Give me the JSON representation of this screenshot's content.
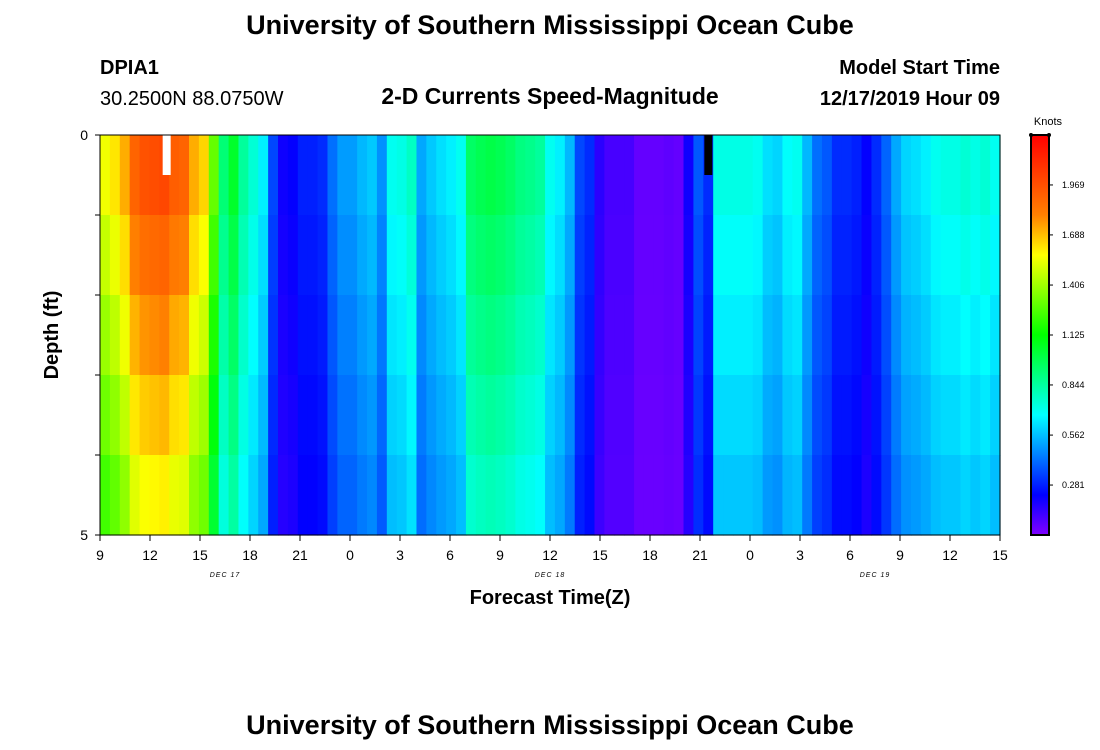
{
  "header": {
    "title": "University of Southern Mississippi Ocean Cube",
    "station_id": "DPIA1",
    "station_coords": "30.2500N 88.0750W",
    "plot_title": "2-D Currents Speed-Magnitude",
    "model_start_label": "Model Start Time",
    "model_start_value": "12/17/2019 Hour 09"
  },
  "footer": {
    "title": "University of Southern Mississippi Ocean Cube"
  },
  "chart_data": {
    "type": "heatmap",
    "title": "2-D Currents Speed-Magnitude",
    "xlabel": "Forecast Time(Z)",
    "ylabel": "Depth (ft)",
    "x_ticks": [
      "9",
      "12",
      "15",
      "18",
      "21",
      "0",
      "3",
      "6",
      "9",
      "12",
      "15",
      "18",
      "21",
      "0",
      "3",
      "6",
      "9",
      "12",
      "15"
    ],
    "day_labels": [
      {
        "label": "DEC 17",
        "hour_offset": 7.5
      },
      {
        "label": "DEC 18",
        "hour_offset": 27
      },
      {
        "label": "DEC 19",
        "hour_offset": 46.5
      }
    ],
    "y_ticks": [
      "0",
      "5"
    ],
    "ylim": [
      0,
      5
    ],
    "xlim_hours_from_start": [
      0,
      54
    ],
    "time_step_hours": 1,
    "depth_levels": 5,
    "colorbar": {
      "units": "Knots",
      "range": [
        0,
        2.25
      ],
      "tick_values": [
        "1.969",
        "1.688",
        "1.406",
        "1.125",
        "0.844",
        "0.562",
        "0.281"
      ],
      "colors": [
        "#8000ff",
        "#0000ff",
        "#0080ff",
        "#00ffff",
        "#00ff80",
        "#00ff00",
        "#80ff00",
        "#ffff00",
        "#ff8000",
        "#ff4000",
        "#ff0000"
      ]
    },
    "surface_speed_knots": [
      1.55,
      1.62,
      1.72,
      1.9,
      1.96,
      1.98,
      2.0,
      1.92,
      1.9,
      1.72,
      1.65,
      1.3,
      0.92,
      1.05,
      0.85,
      0.75,
      0.65,
      0.35,
      0.2,
      0.22,
      0.28,
      0.28,
      0.3,
      0.42,
      0.5,
      0.5,
      0.55,
      0.58,
      0.48,
      0.7,
      0.72,
      0.78,
      0.52,
      0.58,
      0.62,
      0.65,
      0.7,
      0.95,
      0.98,
      1.0,
      0.98,
      0.95,
      0.9,
      0.88,
      0.85,
      0.7,
      0.65,
      0.55,
      0.35,
      0.3,
      0.15,
      0.1,
      0.1,
      0.1,
      0.05,
      0.05,
      0.05,
      0.06,
      0.05,
      0.2,
      0.38,
      0.3,
      0.72,
      0.72,
      0.72,
      0.72,
      0.7,
      0.62,
      0.6,
      0.68,
      0.7,
      0.55,
      0.42,
      0.38,
      0.3,
      0.3,
      0.28,
      0.22,
      0.3,
      0.4,
      0.52,
      0.6,
      0.62,
      0.65,
      0.7,
      0.72,
      0.72,
      0.75,
      0.72,
      0.75,
      0.7
    ]
  },
  "missing_markers": [
    {
      "label": "white-gap",
      "color": "#ffffff",
      "hour_offset": 4
    },
    {
      "label": "black-gap",
      "color": "#000000",
      "hour_offset": 36.5
    }
  ]
}
